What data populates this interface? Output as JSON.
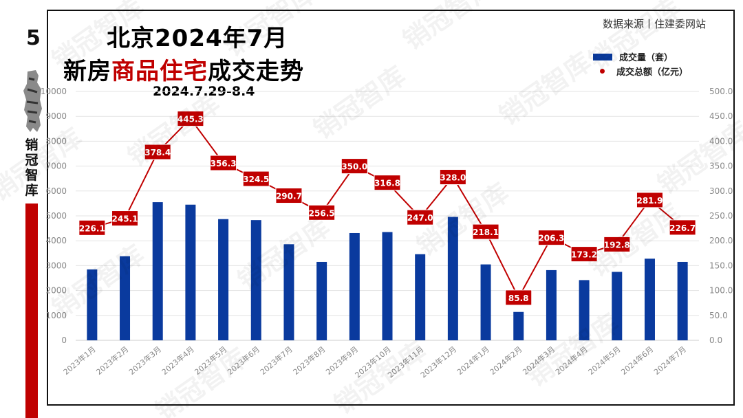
{
  "page_number": "5",
  "brand": "销冠智库",
  "title": {
    "line1": "北京2024年7月",
    "line2_prefix": "新房",
    "line2_highlight": "商品住宅",
    "line2_suffix": "成交走势",
    "date_range": "2024.7.29-8.4"
  },
  "source": "数据来源丨住建委网站",
  "watermark": "销冠智库",
  "colors": {
    "bar": "#0a3a9e",
    "line": "#c00000",
    "accent": "#c00000"
  },
  "chart_data": {
    "type": "bar",
    "categories": [
      "2023年1月",
      "2023年2月",
      "2023年3月",
      "2023年4月",
      "2023年5月",
      "2023年6月",
      "2023年7月",
      "2023年8月",
      "2023年9月",
      "2023年10月",
      "2023年11月",
      "2023年12月",
      "2024年1月",
      "2024年2月",
      "2024年3月",
      "2024年4月",
      "2024年5月",
      "2024年6月",
      "2024年7月"
    ],
    "series": [
      {
        "name": "成交量（套）",
        "type": "bar",
        "axis": "left",
        "values": [
          2850,
          3380,
          5550,
          5450,
          4870,
          4830,
          3860,
          3150,
          4310,
          4350,
          3460,
          4960,
          3050,
          1140,
          2820,
          2420,
          2750,
          3280,
          3150
        ]
      },
      {
        "name": "成交总额（亿元）",
        "type": "line",
        "axis": "right",
        "values": [
          226.1,
          245.1,
          378.4,
          445.3,
          356.3,
          324.5,
          290.7,
          256.5,
          350.0,
          316.8,
          247.0,
          328.0,
          218.1,
          85.8,
          206.3,
          173.2,
          192.8,
          281.9,
          226.7
        ],
        "labels": [
          "226.1",
          "245.1",
          "378.4",
          "445.3",
          "356.3",
          "324.5",
          "290.7",
          "256.5",
          "350.0",
          "316.8",
          "247.0",
          "328.0",
          "218.1",
          "85.8",
          "206.3",
          "173.2",
          "192.8",
          "281.9",
          "226.7"
        ]
      }
    ],
    "y_left": {
      "range": [
        0,
        10000
      ],
      "ticks": [
        "0",
        "1000",
        "2000",
        "3000",
        "4000",
        "5000",
        "6000",
        "7000",
        "8000",
        "9000",
        "10000"
      ]
    },
    "y_right": {
      "range": [
        0,
        500
      ],
      "ticks": [
        "0.0",
        "50.0",
        "100.0",
        "150.0",
        "200.0",
        "250.0",
        "300.0",
        "350.0",
        "400.0",
        "450.0",
        "500.0"
      ]
    },
    "grid": true,
    "legend_position": "top-right"
  }
}
